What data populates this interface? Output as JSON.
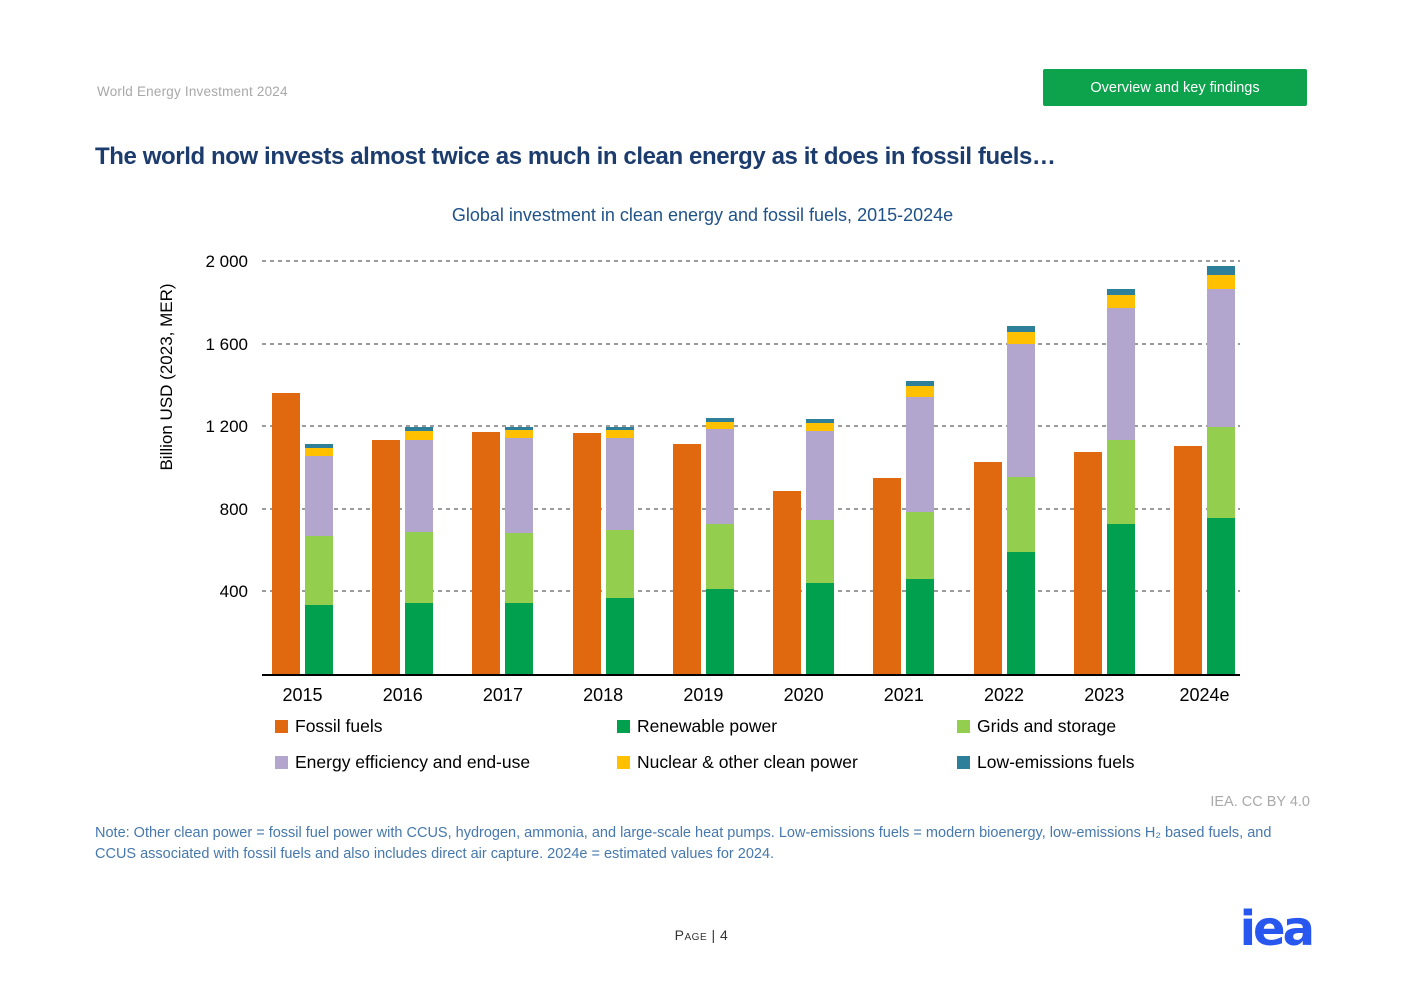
{
  "header": {
    "report_title": "World Energy Investment 2024",
    "section_button_label": "Overview and key findings",
    "section_button_color": "#0da24c"
  },
  "page_title": "The world now invests almost twice as much in clean energy as it does in fossil fuels…",
  "chart_data": {
    "type": "bar",
    "subtype": "grouped-stacked-columns",
    "title": "Global investment in clean energy and fossil fuels, 2015-2024e",
    "ylabel": "Billion USD (2023, MER)",
    "ylim": [
      0,
      2050
    ],
    "yticks": [
      400,
      800,
      1200,
      1600,
      2000
    ],
    "ytick_labels": [
      "400",
      "800",
      "1 200",
      "1 600",
      "2 000"
    ],
    "grid": "horizontal-dotted",
    "legend_position": "bottom",
    "categories": [
      "2015",
      "2016",
      "2017",
      "2018",
      "2019",
      "2020",
      "2021",
      "2022",
      "2023",
      "2024e"
    ],
    "series": [
      {
        "name": "Fossil fuels",
        "group": "fossil",
        "color": "#e0690f",
        "values": [
          1365,
          1140,
          1175,
          1170,
          1120,
          890,
          955,
          1030,
          1080,
          1110
        ]
      },
      {
        "name": "Renewable power",
        "group": "clean",
        "color": "#00a04f",
        "values": [
          340,
          350,
          350,
          375,
          415,
          445,
          465,
          595,
          730,
          760
        ]
      },
      {
        "name": "Grids and storage",
        "group": "clean",
        "color": "#93ce4e",
        "values": [
          335,
          345,
          340,
          330,
          315,
          305,
          325,
          365,
          405,
          440
        ]
      },
      {
        "name": "Energy efficiency and end-use",
        "group": "clean",
        "color": "#b3a6ce",
        "values": [
          385,
          445,
          460,
          445,
          460,
          430,
          555,
          645,
          640,
          670
        ]
      },
      {
        "name": "Nuclear & other clean power",
        "group": "clean",
        "color": "#ffc000",
        "values": [
          40,
          45,
          40,
          40,
          35,
          40,
          55,
          60,
          65,
          70
        ]
      },
      {
        "name": "Low-emissions fuels",
        "group": "clean",
        "color": "#2e7f99",
        "values": [
          20,
          20,
          15,
          15,
          20,
          20,
          25,
          30,
          30,
          45
        ]
      }
    ]
  },
  "attribution": "IEA. CC BY 4.0",
  "note": "Note: Other clean power = fossil fuel power with CCUS, hydrogen, ammonia, and large-scale heat pumps. Low-emissions fuels = modern bioenergy, low-emissions H₂ based fuels, and CCUS associated with fossil fuels and also includes direct air capture. 2024e = estimated values for 2024.",
  "footer": {
    "page_label": "Page | 4",
    "logo_text": "iea"
  }
}
